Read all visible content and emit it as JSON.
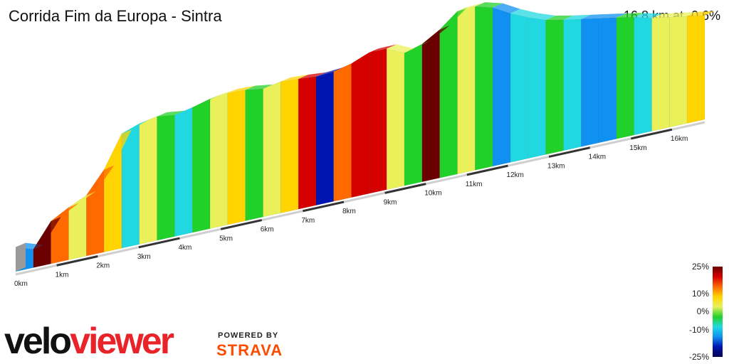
{
  "header": {
    "title": "Corrida Fim da Europa - Sintra",
    "summary": "16.8 km at -0.6%"
  },
  "branding": {
    "logo_velo": "velo",
    "logo_viewer": "viewer",
    "powered_by": "POWERED BY",
    "strava": "STRAVA"
  },
  "colors": {
    "brand_red": "#e8232a",
    "strava_orange": "#fc4c02"
  },
  "chart_data": {
    "type": "area",
    "title": "Corrida Fim da Europa - Sintra",
    "xlabel": "",
    "ylabel": "",
    "x_unit": "km",
    "distance_km": 16.8,
    "average_gradient_pct": -0.6,
    "x_ticks": [
      "0km",
      "1km",
      "2km",
      "3km",
      "4km",
      "5km",
      "6km",
      "7km",
      "8km",
      "9km",
      "10km",
      "11km",
      "12km",
      "13km",
      "14km",
      "15km",
      "16km"
    ],
    "relative_elevation_profile": {
      "x_km": [
        0,
        0.25,
        0.5,
        0.8,
        1.0,
        1.5,
        2.0,
        2.5,
        3.0,
        3.5,
        4.0,
        4.5,
        5.0,
        5.5,
        6.0,
        6.5,
        7.0,
        7.5,
        8.0,
        8.3,
        8.6,
        9.0,
        9.3,
        9.6,
        10.0,
        10.3,
        10.6,
        11.0,
        11.3,
        11.6,
        12.0,
        12.5,
        13.0,
        13.5,
        14.0,
        14.5,
        15.0,
        15.5,
        15.8,
        16.0,
        16.3,
        16.8
      ],
      "elevation": [
        4,
        0,
        1,
        12,
        18,
        20,
        28,
        52,
        56,
        58,
        56,
        60,
        62,
        62,
        60,
        62,
        61,
        60,
        62,
        64,
        67,
        68,
        62,
        63,
        66,
        70,
        78,
        80,
        79,
        77,
        72,
        67,
        63,
        61,
        59,
        57,
        55,
        52,
        51,
        50,
        49,
        47
      ]
    },
    "segment_gradient_pct": [
      -12,
      25,
      15,
      5,
      15,
      8,
      -10,
      5,
      0,
      -8,
      0,
      5,
      10,
      0,
      5,
      10,
      18,
      -20,
      15,
      18,
      20,
      5,
      0,
      25,
      0,
      5,
      -5,
      -12,
      -10,
      -6,
      -5,
      -10,
      -15,
      -12,
      -5,
      -10,
      5,
      2,
      10
    ],
    "color_scale": {
      "ticks": [
        "25%",
        "10%",
        "0%",
        "-10%",
        "-25%"
      ],
      "colors": [
        "#6b0000",
        "#d40000",
        "#ff6a00",
        "#ffd400",
        "#eaf05a",
        "#22d02a",
        "#22d8e0",
        "#1090f0",
        "#0015b0",
        "#00004d"
      ]
    }
  }
}
